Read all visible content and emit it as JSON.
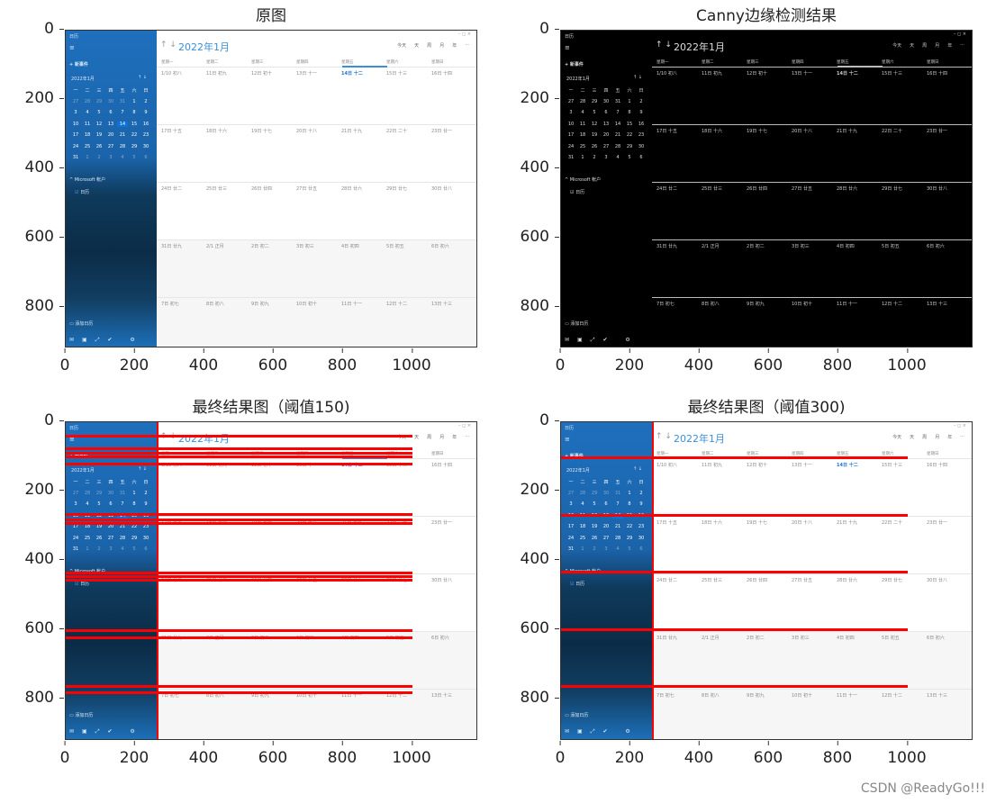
{
  "figure": {
    "watermark": "CSDN @ReadyGo!!!",
    "panels": [
      {
        "id": "original",
        "title": "原图"
      },
      {
        "id": "canny",
        "title": "Canny边缘检测结果"
      },
      {
        "id": "final150",
        "title": "最终结果图（阈值150)"
      },
      {
        "id": "final300",
        "title": "最终结果图（阈值300)"
      }
    ],
    "x_ticks": [
      "0",
      "200",
      "400",
      "600",
      "800",
      "1000"
    ],
    "y_ticks": [
      "0",
      "200",
      "400",
      "600",
      "800"
    ]
  },
  "calendar_app": {
    "window_label": "日历",
    "nav_arrows": "↑ ↓",
    "month_title": "2022年1月",
    "new_event": "+  新事件",
    "mini_month_title": "2022年1月",
    "mini_arrows": "↑ ↓",
    "mini_weekdays": [
      "一",
      "二",
      "三",
      "四",
      "五",
      "六",
      "日"
    ],
    "mini_weeks": [
      [
        "27",
        "28",
        "29",
        "30",
        "31",
        "1",
        "2"
      ],
      [
        "3",
        "4",
        "5",
        "6",
        "7",
        "8",
        "9"
      ],
      [
        "10",
        "11",
        "12",
        "13",
        "14",
        "15",
        "16"
      ],
      [
        "17",
        "18",
        "19",
        "20",
        "21",
        "22",
        "23"
      ],
      [
        "24",
        "25",
        "26",
        "27",
        "28",
        "29",
        "30"
      ],
      [
        "31",
        "1",
        "2",
        "3",
        "4",
        "5",
        "6"
      ]
    ],
    "account_section": "^ Microsoft 帐户",
    "calendar_checkbox": "日历",
    "add_calendar": "添加日历",
    "toolbar": [
      "今天",
      "天",
      "周",
      "月",
      "年",
      "···"
    ],
    "weekdays": [
      "星期一",
      "星期二",
      "星期三",
      "星期四",
      "星期五",
      "星期六",
      "星期日"
    ],
    "weeks": [
      [
        "1/10 初八",
        "11日 初九",
        "12日 初十",
        "13日 十一",
        "14日 十二",
        "15日 十三",
        "16日 十四"
      ],
      [
        "17日 十五",
        "18日 十六",
        "19日 十七",
        "20日 十八",
        "21日 十九",
        "22日 二十",
        "23日 廿一"
      ],
      [
        "24日 廿二",
        "25日 廿三",
        "26日 廿四",
        "27日 廿五",
        "28日 廿六",
        "29日 廿七",
        "30日 廿八"
      ],
      [
        "31日 廿九",
        "2/1 正月",
        "2日 初二",
        "3日 初三",
        "4日 初四",
        "5日 初五",
        "6日 初六"
      ],
      [
        "7日 初七",
        "8日 初八",
        "9日 初九",
        "10日 初十",
        "11日 十一",
        "12日 十二",
        "13日 十三"
      ]
    ],
    "today_index": [
      0,
      4
    ]
  },
  "chart_data": [
    {
      "type": "image",
      "title": "原图",
      "xlim": [
        0,
        1190
      ],
      "ylim": [
        920,
        0
      ],
      "x_ticks": [
        0,
        200,
        400,
        600,
        800,
        1000
      ],
      "y_ticks": [
        0,
        200,
        400,
        600,
        800
      ]
    },
    {
      "type": "image",
      "title": "Canny边缘检测结果",
      "xlim": [
        0,
        1190
      ],
      "ylim": [
        920,
        0
      ],
      "x_ticks": [
        0,
        200,
        400,
        600,
        800,
        1000
      ],
      "y_ticks": [
        0,
        200,
        400,
        600,
        800
      ]
    },
    {
      "type": "image",
      "title": "最终结果图（阈值150)",
      "xlim": [
        0,
        1190
      ],
      "ylim": [
        920,
        0
      ],
      "vertical_line_x": 262,
      "horizontal_lines_y": [
        40,
        75,
        88,
        98,
        120,
        265,
        280,
        290,
        435,
        445,
        455,
        600,
        620,
        760,
        780
      ],
      "line_x_range": [
        0,
        1000
      ]
    },
    {
      "type": "image",
      "title": "最终结果图（阈值300)",
      "xlim": [
        0,
        1190
      ],
      "ylim": [
        920,
        0
      ],
      "vertical_line_x": 262,
      "horizontal_lines_y": [
        102,
        268,
        432,
        598,
        762
      ],
      "line_x_range": [
        0,
        1000
      ]
    }
  ]
}
